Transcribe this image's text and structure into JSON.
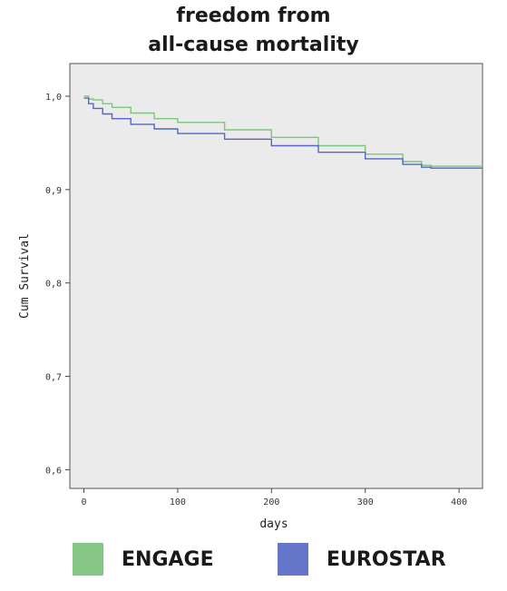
{
  "chart_data": {
    "type": "line",
    "title_lines": [
      "freedom from",
      "all-cause mortality"
    ],
    "xlabel": "days",
    "ylabel": "Cum Survival",
    "xlim": [
      -15,
      425
    ],
    "ylim": [
      0.58,
      1.035
    ],
    "x_ticks": [
      0,
      100,
      200,
      300,
      400
    ],
    "x_tick_labels": [
      "0",
      "100",
      "200",
      "300",
      "400"
    ],
    "y_ticks": [
      0.6,
      0.7,
      0.8,
      0.9,
      1.0
    ],
    "y_tick_labels": [
      "0,6",
      "0,7",
      "0,8",
      "0,9",
      "1,0"
    ],
    "grid": false,
    "legend_position": "bottom",
    "series": [
      {
        "name": "ENGAGE",
        "color": "#7fc47f",
        "x": [
          0,
          5,
          10,
          20,
          30,
          50,
          75,
          100,
          150,
          200,
          250,
          300,
          340,
          360,
          370,
          425
        ],
        "y": [
          1.0,
          0.997,
          0.996,
          0.992,
          0.988,
          0.982,
          0.976,
          0.972,
          0.964,
          0.956,
          0.947,
          0.938,
          0.93,
          0.926,
          0.925,
          0.925
        ]
      },
      {
        "name": "EUROSTAR",
        "color": "#5566c8",
        "x": [
          0,
          5,
          10,
          20,
          30,
          50,
          75,
          100,
          150,
          200,
          250,
          300,
          340,
          360,
          370,
          425
        ],
        "y": [
          0.998,
          0.992,
          0.987,
          0.981,
          0.976,
          0.97,
          0.965,
          0.96,
          0.954,
          0.947,
          0.94,
          0.933,
          0.927,
          0.924,
          0.923,
          0.923
        ]
      }
    ]
  }
}
